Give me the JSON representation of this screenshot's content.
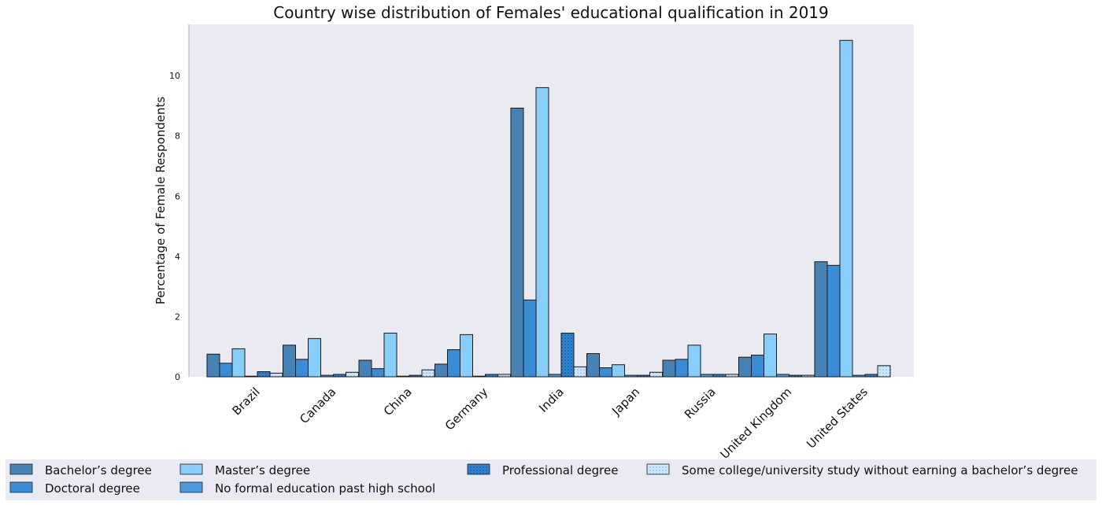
{
  "chart_data": {
    "type": "bar",
    "title": "Country wise distribution of Females' educational qualification in 2019",
    "xlabel": "",
    "ylabel": "Percentage of Female Respondents",
    "ylim": [
      0,
      11.7
    ],
    "yticks": [
      0,
      2,
      4,
      6,
      8,
      10
    ],
    "grid": false,
    "legend_placement": "bottom",
    "categories": [
      "Brazil",
      "Canada",
      "China",
      "Germany",
      "India",
      "Japan",
      "Russia",
      "United Kingdom",
      "United States"
    ],
    "series": [
      {
        "name": "Bachelor’s degree",
        "color": "#4682b4",
        "pattern": "plain",
        "values": [
          0.75,
          1.05,
          0.55,
          0.42,
          8.92,
          0.77,
          0.55,
          0.65,
          3.82
        ]
      },
      {
        "name": "Doctoral degree",
        "color": "#3a8cd6",
        "pattern": "plain",
        "values": [
          0.45,
          0.58,
          0.27,
          0.9,
          2.55,
          0.3,
          0.58,
          0.72,
          3.7
        ]
      },
      {
        "name": "Master’s degree",
        "color": "#87cefa",
        "pattern": "plain",
        "values": [
          0.93,
          1.27,
          1.45,
          1.4,
          9.6,
          0.4,
          1.05,
          1.42,
          11.17
        ]
      },
      {
        "name": "No formal education past high school",
        "color": "#4a9ae0",
        "pattern": "plain",
        "values": [
          0.0,
          0.05,
          0.0,
          0.0,
          0.08,
          0.05,
          0.08,
          0.08,
          0.05
        ]
      },
      {
        "name": "Professional degree",
        "color": "#2f80cf",
        "pattern": "dots",
        "values": [
          0.17,
          0.08,
          0.05,
          0.08,
          1.45,
          0.05,
          0.08,
          0.05,
          0.08
        ]
      },
      {
        "name": "Some college/university study without earning a bachelor’s degree",
        "color": "#cce5f8",
        "pattern": "dots",
        "values": [
          0.12,
          0.15,
          0.23,
          0.08,
          0.33,
          0.15,
          0.08,
          0.05,
          0.37
        ]
      }
    ]
  },
  "legend": {
    "bachelors": "Bachelor’s degree",
    "doctoral": "Doctoral degree",
    "masters": "Master’s degree",
    "no_formal": "No formal education past high school",
    "professional": "Professional degree",
    "some_college": "Some college/university study without earning a bachelor’s degree"
  }
}
